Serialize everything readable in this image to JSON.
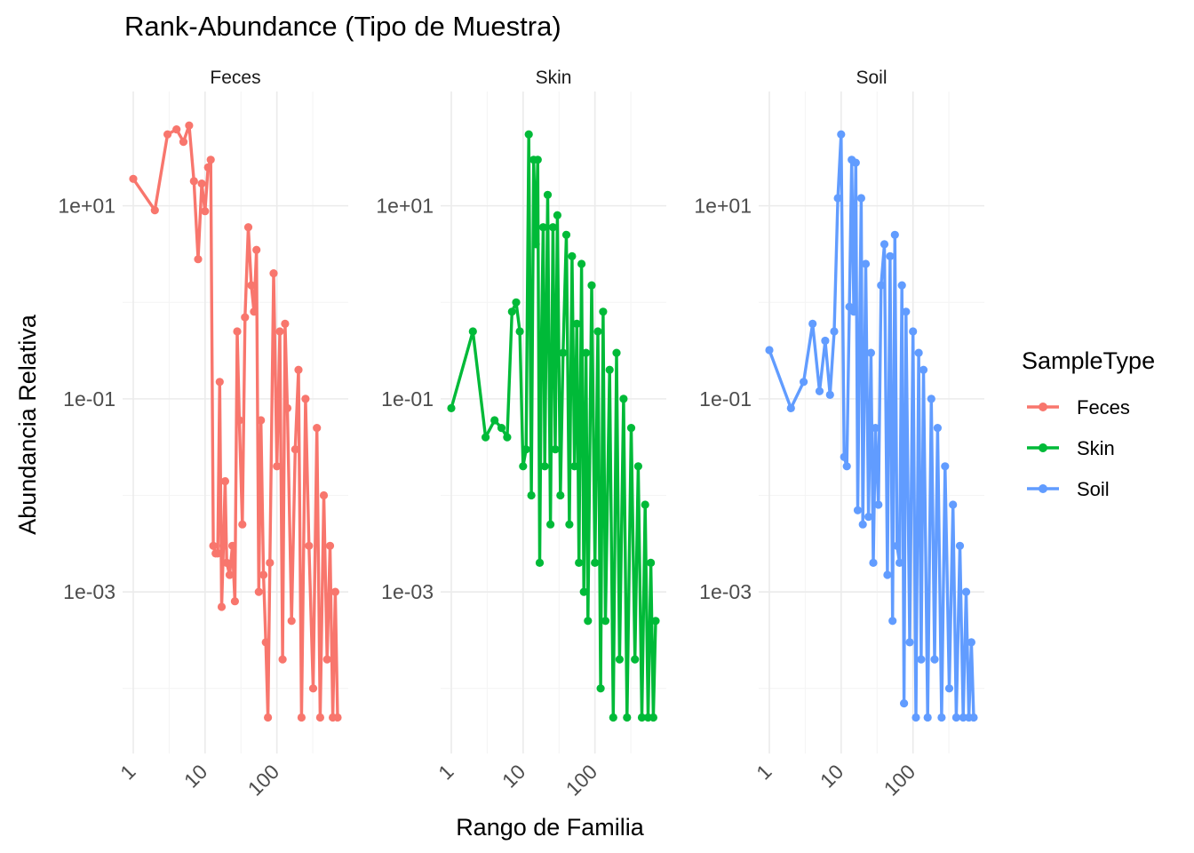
{
  "chart_data": {
    "type": "line",
    "title": "Rank-Abundance (Tipo de Muestra)",
    "xlabel": "Rango de Familia",
    "ylabel": "Abundancia Relativa",
    "x_scale": "log10",
    "y_scale": "log10",
    "x_ticks": [
      "1",
      "10",
      "100"
    ],
    "y_ticks": [
      "1e-03",
      "1e-01",
      "1e+01"
    ],
    "grid": true,
    "legend": {
      "title": "SampleType",
      "placement": "right"
    },
    "colors": {
      "Feces": "#F8766D",
      "Skin": "#00BA38",
      "Soil": "#619CFF"
    },
    "facets": [
      {
        "label": "Feces",
        "xlim": [
          1,
          700
        ],
        "ylim": [
          4e-05,
          100
        ],
        "series": [
          {
            "name": "Feces",
            "x": [
              1,
              2,
              3,
              4,
              5,
              6,
              7,
              8,
              9,
              10,
              11,
              12,
              13,
              14,
              15,
              16,
              17,
              18,
              19,
              20,
              22,
              24,
              26,
              28,
              30,
              33,
              36,
              40,
              44,
              48,
              52,
              56,
              60,
              65,
              70,
              75,
              80,
              90,
              100,
              110,
              120,
              130,
              140,
              160,
              180,
              200,
              220,
              250,
              280,
              320,
              360,
              400,
              450,
              500,
              550,
              600,
              650,
              700
            ],
            "values": [
              19,
              9.0,
              55,
              62,
              46,
              68,
              18,
              2.8,
              17,
              8.8,
              25,
              30,
              0.003,
              0.0025,
              0.0025,
              0.15,
              0.0007,
              0.003,
              0.014,
              0.002,
              0.0015,
              0.003,
              0.0008,
              0.5,
              0.06,
              0.005,
              0.7,
              6.0,
              1.5,
              0.8,
              3.5,
              0.001,
              0.06,
              0.0015,
              0.0003,
              5e-05,
              0.002,
              2.0,
              0.02,
              0.5,
              0.0002,
              0.6,
              0.08,
              0.0005,
              0.03,
              0.2,
              5e-05,
              0.1,
              0.003,
              0.0001,
              0.05,
              5e-05,
              0.01,
              0.0002,
              0.003,
              5e-05,
              0.001,
              5e-05
            ]
          }
        ]
      },
      {
        "label": "Skin",
        "xlim": [
          1,
          700
        ],
        "ylim": [
          4e-05,
          100
        ],
        "series": [
          {
            "name": "Skin",
            "x": [
              1,
              2,
              3,
              4,
              5,
              6,
              7,
              8,
              9,
              10,
              11,
              12,
              13,
              14,
              15,
              16,
              17,
              18,
              19,
              20,
              22,
              24,
              26,
              28,
              30,
              33,
              36,
              40,
              44,
              48,
              52,
              56,
              60,
              65,
              70,
              75,
              80,
              90,
              100,
              110,
              120,
              130,
              140,
              160,
              180,
              200,
              220,
              250,
              280,
              320,
              360,
              400,
              450,
              500,
              550,
              600,
              650,
              700
            ],
            "values": [
              0.08,
              0.5,
              0.04,
              0.06,
              0.05,
              0.04,
              0.8,
              1.0,
              0.5,
              0.02,
              0.03,
              55,
              0.01,
              30,
              4.0,
              30,
              0.002,
              0.4,
              6.0,
              0.02,
              13,
              0.005,
              6.0,
              0.03,
              8.0,
              0.01,
              0.3,
              5.0,
              0.005,
              3.0,
              0.02,
              0.6,
              0.002,
              2.5,
              0.001,
              0.3,
              0.0005,
              1.5,
              0.002,
              0.5,
              0.0001,
              0.8,
              0.0005,
              0.2,
              5e-05,
              0.3,
              0.0002,
              0.1,
              5e-05,
              0.05,
              0.0002,
              0.02,
              5e-05,
              0.008,
              5e-05,
              0.002,
              5e-05,
              0.0005
            ]
          }
        ]
      },
      {
        "label": "Soil",
        "xlim": [
          1,
          700
        ],
        "ylim": [
          4e-05,
          100
        ],
        "series": [
          {
            "name": "Soil",
            "x": [
              1,
              2,
              3,
              4,
              5,
              6,
              7,
              8,
              9,
              10,
              11,
              12,
              13,
              14,
              15,
              16,
              17,
              18,
              19,
              20,
              22,
              24,
              26,
              28,
              30,
              33,
              36,
              40,
              44,
              48,
              52,
              56,
              60,
              65,
              70,
              75,
              80,
              90,
              100,
              110,
              120,
              130,
              140,
              160,
              180,
              200,
              220,
              250,
              280,
              320,
              360,
              400,
              450,
              500,
              550,
              600,
              650,
              700
            ],
            "values": [
              0.32,
              0.08,
              0.15,
              0.6,
              0.12,
              0.4,
              0.11,
              0.5,
              12,
              55,
              0.025,
              0.02,
              0.9,
              30,
              0.8,
              28,
              0.007,
              0.4,
              12,
              0.005,
              2.5,
              0.006,
              0.3,
              0.002,
              0.05,
              0.008,
              1.5,
              4.0,
              0.0015,
              3.0,
              0.0005,
              5.0,
              0.003,
              0.002,
              1.5,
              7e-05,
              0.8,
              0.0003,
              0.5,
              5e-05,
              0.3,
              0.0002,
              0.2,
              5e-05,
              0.1,
              0.0002,
              0.05,
              5e-05,
              0.02,
              0.0001,
              0.008,
              5e-05,
              0.003,
              5e-05,
              0.001,
              5e-05,
              0.0003,
              5e-05
            ]
          }
        ]
      }
    ]
  }
}
